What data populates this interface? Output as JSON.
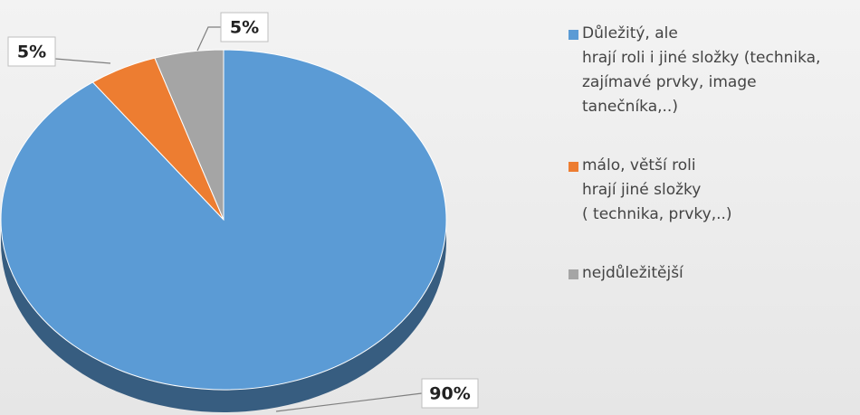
{
  "chart_data": {
    "type": "pie",
    "categories": [
      "Důležitý, ale\n hrají roli i jiné složky (technika,\n zajímavé prvky, image\n tanečníka,..)",
      "málo, větší roli\n hrají jiné složky\n ( technika, prvky,..)",
      "nejdůležitější"
    ],
    "values": [
      90,
      5,
      5
    ],
    "value_labels": [
      "90%",
      "5%",
      "5%"
    ],
    "colors": [
      "#5b9bd5",
      "#ed7d31",
      "#a5a5a5"
    ],
    "legend": "right"
  }
}
